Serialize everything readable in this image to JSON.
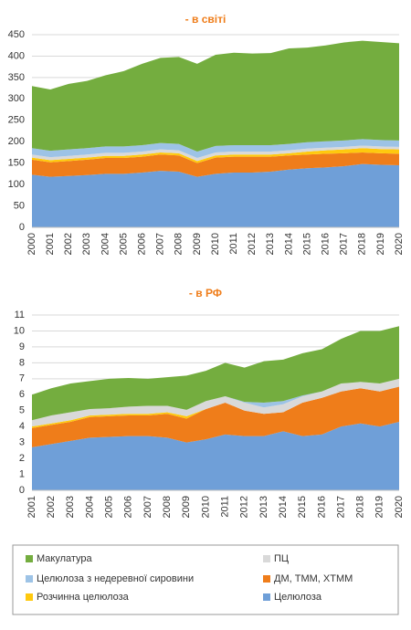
{
  "chart_data": [
    {
      "type": "stacked_area",
      "title": "- в світі",
      "categories": [
        "2000",
        "2001",
        "2002",
        "2003",
        "2004",
        "2005",
        "2006",
        "2007",
        "2008",
        "2009",
        "2010",
        "2011",
        "2012",
        "2013",
        "2014",
        "2015",
        "2016",
        "2017",
        "2018",
        "2019",
        "2020"
      ],
      "ylim": [
        0,
        450
      ],
      "yticks": [
        0,
        50,
        100,
        150,
        200,
        250,
        300,
        350,
        400,
        450
      ],
      "grid": true,
      "series": [
        {
          "name": "Целюлоза",
          "color": "#6f9fd8",
          "values": [
            123,
            118,
            120,
            122,
            125,
            125,
            128,
            132,
            130,
            118,
            125,
            128,
            128,
            130,
            135,
            138,
            140,
            143,
            148,
            146,
            145
          ]
        },
        {
          "name": "ДМ, ТММ, ХТММ",
          "color": "#ef7d1a",
          "values": [
            35,
            34,
            35,
            36,
            37,
            37,
            37,
            38,
            38,
            32,
            38,
            37,
            37,
            35,
            33,
            32,
            32,
            30,
            27,
            27,
            27
          ]
        },
        {
          "name": "Розчинна целюлоза",
          "color": "#ffc90e",
          "values": [
            5,
            5,
            5,
            5,
            5,
            5,
            5,
            5,
            5,
            5,
            5,
            5,
            5,
            5,
            5,
            7,
            8,
            9,
            10,
            10,
            10
          ]
        },
        {
          "name": "ПЦ",
          "color": "#d9d9d9",
          "values": [
            7,
            7,
            7,
            7,
            7,
            7,
            7,
            7,
            7,
            7,
            7,
            7,
            7,
            7,
            7,
            7,
            6,
            6,
            6,
            6,
            6
          ]
        },
        {
          "name": "Целюлоза з недеревної сировини",
          "color": "#9dc3e6",
          "values": [
            15,
            15,
            15,
            15,
            15,
            15,
            15,
            15,
            15,
            15,
            15,
            15,
            15,
            15,
            15,
            15,
            15,
            15,
            15,
            15,
            15
          ]
        },
        {
          "name": "Макулатура",
          "color": "#74ad3f",
          "values": [
            145,
            143,
            153,
            157,
            166,
            176,
            190,
            199,
            203,
            205,
            213,
            216,
            214,
            215,
            223,
            221,
            224,
            229,
            230,
            229,
            227
          ]
        }
      ]
    },
    {
      "type": "stacked_area",
      "title": "- в РФ",
      "categories": [
        "2001",
        "2002",
        "2003",
        "2004",
        "2005",
        "2006",
        "2007",
        "2008",
        "2009",
        "2010",
        "2011",
        "2012",
        "2013",
        "2014",
        "2015",
        "2016",
        "2017",
        "2018",
        "2019",
        "2020"
      ],
      "ylim": [
        0,
        11
      ],
      "yticks": [
        0,
        1,
        2,
        3,
        4,
        5,
        6,
        7,
        8,
        9,
        10,
        11
      ],
      "grid": true,
      "series": [
        {
          "values": [
            2.7,
            2.9,
            3.1,
            3.3,
            3.35,
            3.4,
            3.4,
            3.3,
            3.0,
            3.2,
            3.5,
            3.4,
            3.4,
            3.7,
            3.4,
            3.5,
            4.0,
            4.2,
            4.0,
            4.3
          ]
        },
        {
          "values": [
            1.2,
            1.2,
            1.2,
            1.3,
            1.3,
            1.3,
            1.3,
            1.5,
            1.5,
            1.9,
            2.0,
            1.6,
            1.4,
            1.2,
            2.1,
            2.3,
            2.2,
            2.2,
            2.2,
            2.2
          ]
        },
        {
          "values": [
            0.1,
            0.1,
            0.1,
            0.1,
            0.1,
            0.1,
            0.1,
            0.1,
            0.15,
            0,
            0,
            0,
            0,
            0,
            0,
            0,
            0,
            0,
            0,
            0
          ]
        },
        {
          "values": [
            0.4,
            0.5,
            0.5,
            0.4,
            0.4,
            0.45,
            0.5,
            0.4,
            0.4,
            0.5,
            0.4,
            0.5,
            0.4,
            0.5,
            0.4,
            0.4,
            0.5,
            0.4,
            0.5,
            0.5
          ]
        },
        {
          "values": [
            0,
            0,
            0,
            0,
            0,
            0,
            0,
            0,
            0,
            0,
            0,
            0.05,
            0.3,
            0.2,
            0.05,
            0,
            0,
            0,
            0,
            0
          ]
        },
        {
          "values": [
            1.6,
            1.7,
            1.8,
            1.75,
            1.85,
            1.8,
            1.7,
            1.8,
            2.15,
            1.9,
            2.1,
            2.15,
            2.6,
            2.6,
            2.65,
            2.65,
            2.8,
            3.2,
            3.3,
            3.3
          ]
        }
      ]
    }
  ]
}
